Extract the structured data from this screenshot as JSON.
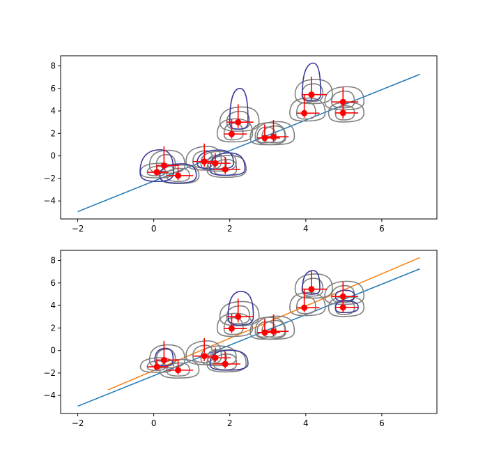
{
  "chart_data": [
    {
      "type": "scatter",
      "title": "",
      "xlabel": "",
      "ylabel": "",
      "xlim": [
        -2.45,
        7.45
      ],
      "ylim": [
        -5.6,
        8.9
      ],
      "xticks": [
        "−2",
        "0",
        "2",
        "4",
        "6"
      ],
      "yticks": [
        "−4",
        "−2",
        "0",
        "2",
        "4",
        "6",
        "8"
      ],
      "xtick_values": [
        -2,
        0,
        2,
        4,
        6
      ],
      "ytick_values": [
        -4,
        -2,
        0,
        2,
        4,
        6,
        8
      ],
      "points": [
        {
          "x": 0.08,
          "y": -1.45,
          "xerr": [
            0.25,
            0.3
          ],
          "yerr": [
            0.2,
            0.65
          ]
        },
        {
          "x": 0.27,
          "y": -0.85,
          "xerr": [
            0.2,
            0.4
          ],
          "yerr": [
            0.4,
            1.7
          ]
        },
        {
          "x": 0.64,
          "y": -1.75,
          "xerr": [
            0.3,
            0.4
          ],
          "yerr": [
            0.4,
            0.8
          ]
        },
        {
          "x": 1.33,
          "y": -0.5,
          "xerr": [
            0.3,
            0.3
          ],
          "yerr": [
            0.45,
            1.6
          ]
        },
        {
          "x": 1.62,
          "y": -0.65,
          "xerr": [
            0.2,
            0.4
          ],
          "yerr": [
            0.4,
            0.9
          ]
        },
        {
          "x": 1.88,
          "y": -1.2,
          "xerr": [
            0.3,
            0.4
          ],
          "yerr": [
            0.4,
            1.1
          ]
        },
        {
          "x": 2.05,
          "y": 1.95,
          "xerr": [
            0.2,
            0.4
          ],
          "yerr": [
            0.4,
            1.3
          ]
        },
        {
          "x": 2.22,
          "y": 3.0,
          "xerr": [
            0.3,
            0.4
          ],
          "yerr": [
            0.5,
            1.6
          ]
        },
        {
          "x": 2.92,
          "y": 1.6,
          "xerr": [
            0.2,
            0.4
          ],
          "yerr": [
            0.3,
            1.2
          ]
        },
        {
          "x": 3.15,
          "y": 1.7,
          "xerr": [
            0.3,
            0.4
          ],
          "yerr": [
            0.4,
            1.5
          ]
        },
        {
          "x": 3.96,
          "y": 3.8,
          "xerr": [
            0.2,
            0.4
          ],
          "yerr": [
            0.4,
            1.6
          ]
        },
        {
          "x": 4.15,
          "y": 5.45,
          "xerr": [
            0.25,
            0.4
          ],
          "yerr": [
            0.5,
            1.6
          ]
        },
        {
          "x": 4.98,
          "y": 4.8,
          "xerr": [
            0.3,
            0.4
          ],
          "yerr": [
            0.4,
            1.3
          ]
        },
        {
          "x": 4.98,
          "y": 3.82,
          "xerr": [
            0.2,
            0.4
          ],
          "yerr": [
            0.5,
            0.8
          ]
        }
      ],
      "lines": [
        {
          "x": [
            -2,
            7
          ],
          "y": [
            -4.95,
            7.25
          ],
          "color": "#1f77b4"
        }
      ],
      "highlighted_blobs": [
        [
          0.08,
          -1.45,
          0.44,
          0.44,
          0.82,
          2.0
        ],
        [
          0.64,
          -1.75,
          0.48,
          0.48,
          0.66,
          1.05
        ],
        [
          1.62,
          -0.65,
          0.48,
          0.48,
          0.52,
          1.17
        ],
        [
          1.88,
          -1.2,
          0.4,
          0.52,
          0.52,
          1.47
        ],
        [
          2.22,
          3.0,
          0.22,
          0.26,
          0.62,
          3.0
        ],
        [
          4.15,
          5.45,
          0.24,
          0.24,
          0.52,
          2.8
        ]
      ],
      "colors": {
        "points": "#ff0000",
        "errorbars": "#ff0000",
        "ellipse_gray": "#808080",
        "ellipse_blue": "#3a3a9a"
      }
    },
    {
      "type": "scatter",
      "title": "",
      "xlabel": "",
      "ylabel": "",
      "xlim": [
        -2.45,
        7.45
      ],
      "ylim": [
        -5.6,
        8.9
      ],
      "xticks": [
        "−2",
        "0",
        "2",
        "4",
        "6"
      ],
      "yticks": [
        "−4",
        "−2",
        "0",
        "2",
        "4",
        "6",
        "8"
      ],
      "xtick_values": [
        -2,
        0,
        2,
        4,
        6
      ],
      "ytick_values": [
        -4,
        -2,
        0,
        2,
        4,
        6,
        8
      ],
      "points": [
        {
          "x": 0.08,
          "y": -1.45,
          "xerr": [
            0.25,
            0.3
          ],
          "yerr": [
            0.2,
            0.65
          ]
        },
        {
          "x": 0.27,
          "y": -0.85,
          "xerr": [
            0.2,
            0.4
          ],
          "yerr": [
            0.4,
            1.7
          ]
        },
        {
          "x": 0.64,
          "y": -1.75,
          "xerr": [
            0.3,
            0.4
          ],
          "yerr": [
            0.4,
            0.8
          ]
        },
        {
          "x": 1.33,
          "y": -0.5,
          "xerr": [
            0.3,
            0.3
          ],
          "yerr": [
            0.45,
            1.6
          ]
        },
        {
          "x": 1.62,
          "y": -0.65,
          "xerr": [
            0.2,
            0.4
          ],
          "yerr": [
            0.4,
            0.9
          ]
        },
        {
          "x": 1.88,
          "y": -1.2,
          "xerr": [
            0.3,
            0.4
          ],
          "yerr": [
            0.4,
            1.1
          ]
        },
        {
          "x": 2.05,
          "y": 1.95,
          "xerr": [
            0.2,
            0.4
          ],
          "yerr": [
            0.4,
            1.3
          ]
        },
        {
          "x": 2.22,
          "y": 3.0,
          "xerr": [
            0.3,
            0.4
          ],
          "yerr": [
            0.5,
            1.6
          ]
        },
        {
          "x": 2.92,
          "y": 1.6,
          "xerr": [
            0.2,
            0.4
          ],
          "yerr": [
            0.3,
            1.2
          ]
        },
        {
          "x": 3.15,
          "y": 1.7,
          "xerr": [
            0.3,
            0.4
          ],
          "yerr": [
            0.4,
            1.5
          ]
        },
        {
          "x": 3.96,
          "y": 3.8,
          "xerr": [
            0.2,
            0.4
          ],
          "yerr": [
            0.4,
            1.6
          ]
        },
        {
          "x": 4.15,
          "y": 5.45,
          "xerr": [
            0.25,
            0.4
          ],
          "yerr": [
            0.5,
            1.6
          ]
        },
        {
          "x": 4.98,
          "y": 4.8,
          "xerr": [
            0.3,
            0.4
          ],
          "yerr": [
            0.4,
            1.3
          ]
        },
        {
          "x": 4.98,
          "y": 3.82,
          "xerr": [
            0.2,
            0.4
          ],
          "yerr": [
            0.5,
            0.8
          ]
        }
      ],
      "lines": [
        {
          "x": [
            -2,
            7
          ],
          "y": [
            -4.95,
            7.25
          ],
          "color": "#1f77b4"
        },
        {
          "x": [
            -1.2,
            7
          ],
          "y": [
            -3.5,
            8.25
          ],
          "color": "#ff7f0e"
        }
      ],
      "highlighted_blobs": [
        [
          0.27,
          -0.85,
          0.24,
          0.24,
          0.5,
          1.05
        ],
        [
          1.88,
          -1.2,
          0.4,
          0.6,
          0.55,
          1.22
        ],
        [
          2.22,
          3.0,
          0.26,
          0.4,
          0.75,
          2.25
        ],
        [
          4.15,
          5.45,
          0.24,
          0.22,
          0.45,
          1.65
        ],
        [
          4.98,
          4.8,
          0.2,
          0.3,
          0.4,
          0.55
        ],
        [
          4.98,
          3.82,
          0.2,
          0.4,
          0.45,
          0.58
        ]
      ],
      "colors": {
        "points": "#ff0000",
        "errorbars": "#ff0000",
        "ellipse_gray": "#808080",
        "ellipse_blue": "#3a3a9a"
      }
    }
  ]
}
